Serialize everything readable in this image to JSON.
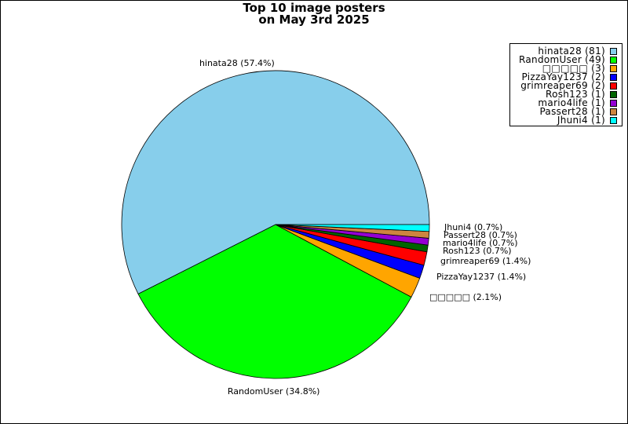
{
  "chart_data": {
    "type": "pie",
    "title_line1": "Top 10 image posters",
    "title_line2": "on May 3rd 2025",
    "legend_position": "top-right",
    "slices": [
      {
        "label": "hinata28",
        "value": 81,
        "percent_label": "hinata28 (57.4%)",
        "legend_label": "hinata28 (81)",
        "color": "#87CEEB"
      },
      {
        "label": "RandomUser",
        "value": 49,
        "percent_label": "RandomUser (34.8%)",
        "legend_label": "RandomUser (49)",
        "color": "#00FF00"
      },
      {
        "label": "□□□□□",
        "value": 3,
        "percent_label": "□□□□□ (2.1%)",
        "legend_label": "□□□□□ (3)",
        "color": "#FFA500"
      },
      {
        "label": "PizzaYay1237",
        "value": 2,
        "percent_label": "PizzaYay1237 (1.4%)",
        "legend_label": "PizzaYay1237 (2)",
        "color": "#0000FF"
      },
      {
        "label": "grimreaper69",
        "value": 2,
        "percent_label": "grimreaper69 (1.4%)",
        "legend_label": "grimreaper69 (2)",
        "color": "#FF0000"
      },
      {
        "label": "Rosh123",
        "value": 1,
        "percent_label": "Rosh123 (0.7%)",
        "legend_label": "Rosh123 (1)",
        "color": "#006400"
      },
      {
        "label": "mario4life",
        "value": 1,
        "percent_label": "mario4life (0.7%)",
        "legend_label": "mario4life (1)",
        "color": "#9400D3"
      },
      {
        "label": "Passert28",
        "value": 1,
        "percent_label": "Passert28  (0.7%)",
        "legend_label": "Passert28  (1)",
        "color": "#CD853F"
      },
      {
        "label": "Jhuni4",
        "value": 1,
        "percent_label": "Jhuni4 (0.7%)",
        "legend_label": "Jhuni4 (1)",
        "color": "#00FFFF"
      }
    ]
  }
}
